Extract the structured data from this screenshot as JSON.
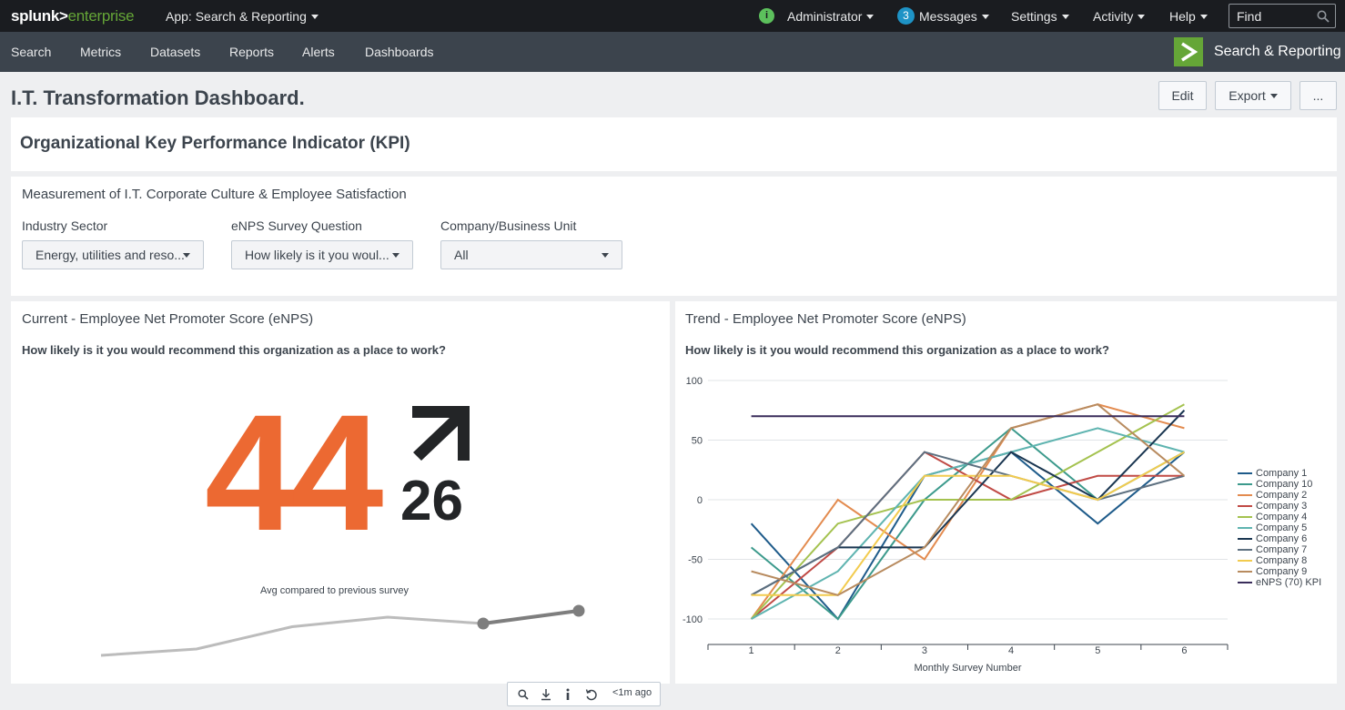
{
  "brand": {
    "part1": "splunk>",
    "part2": "enterprise"
  },
  "topbar": {
    "app_selector": "App: Search & Reporting",
    "status_icon": "info-icon",
    "status_glyph": "i",
    "user": "Administrator",
    "messages_count": "3",
    "messages": "Messages",
    "settings": "Settings",
    "activity": "Activity",
    "help": "Help",
    "find_placeholder": "Find"
  },
  "navbar": {
    "items": [
      "Search",
      "Metrics",
      "Datasets",
      "Reports",
      "Alerts",
      "Dashboards"
    ],
    "app_title": "Search & Reporting"
  },
  "header": {
    "title": "I.T. Transformation Dashboard.",
    "edit": "Edit",
    "export": "Export",
    "more": "..."
  },
  "kpi_title": "Organizational Key Performance Indicator (KPI)",
  "filters": {
    "title": "Measurement of I.T. Corporate Culture & Employee Satisfaction",
    "industry_label": "Industry Sector",
    "industry_value": "Energy, utilities and reso...",
    "question_label": "eNPS Survey Question",
    "question_value": "How likely is it you woul...",
    "company_label": "Company/Business Unit",
    "company_value": "All"
  },
  "current_panel": {
    "title": "Current - Employee Net Promoter Score (eNPS)",
    "subtitle": "How likely is it you would recommend this organization as a place to work?",
    "value": "44",
    "delta": "26",
    "trend_icon": "arrow-up-right-icon",
    "spark_label": "Avg compared to previous survey",
    "spark_values": [
      -40,
      -30,
      5,
      20,
      10,
      30
    ]
  },
  "toolbar": {
    "refresh_time": "<1m ago"
  },
  "trend_panel": {
    "title": "Trend - Employee Net Promoter Score (eNPS)",
    "subtitle": "How likely is it you would recommend this organization as a place to work?"
  },
  "chart_data": {
    "type": "line",
    "xlabel": "Monthly Survey Number",
    "ylabel": "",
    "x": [
      1,
      2,
      3,
      4,
      5,
      6
    ],
    "ylim": [
      -100,
      100
    ],
    "yticks": [
      -100,
      -50,
      0,
      50,
      100
    ],
    "legend_position": "right",
    "series": [
      {
        "name": "Company 1",
        "color": "#1e5b8a",
        "values": [
          -20,
          -100,
          20,
          40,
          -20,
          40
        ]
      },
      {
        "name": "Company 10",
        "color": "#3c9a8c",
        "values": [
          -40,
          -100,
          0,
          60,
          0,
          40
        ]
      },
      {
        "name": "Company 2",
        "color": "#e38b4f",
        "values": [
          -100,
          0,
          -50,
          60,
          80,
          60
        ]
      },
      {
        "name": "Company 3",
        "color": "#c04a45",
        "values": [
          -100,
          -40,
          40,
          0,
          20,
          20
        ]
      },
      {
        "name": "Company 4",
        "color": "#a4c24f",
        "values": [
          -100,
          -20,
          0,
          0,
          40,
          80
        ]
      },
      {
        "name": "Company 5",
        "color": "#5fb4b0",
        "values": [
          -100,
          -60,
          20,
          40,
          60,
          40
        ]
      },
      {
        "name": "Company 6",
        "color": "#1a3651",
        "values": [
          -80,
          -40,
          -40,
          40,
          0,
          75
        ]
      },
      {
        "name": "Company 7",
        "color": "#5d7080",
        "values": [
          -80,
          -40,
          40,
          20,
          0,
          20
        ]
      },
      {
        "name": "Company 8",
        "color": "#f2cb4e",
        "values": [
          -80,
          -80,
          20,
          20,
          0,
          40
        ]
      },
      {
        "name": "Company 9",
        "color": "#b88b5f",
        "values": [
          -60,
          -80,
          -40,
          60,
          80,
          20
        ]
      },
      {
        "name": "eNPS (70) KPI",
        "color": "#3a2d5b",
        "values": [
          70,
          70,
          70,
          70,
          70,
          70
        ]
      }
    ]
  }
}
